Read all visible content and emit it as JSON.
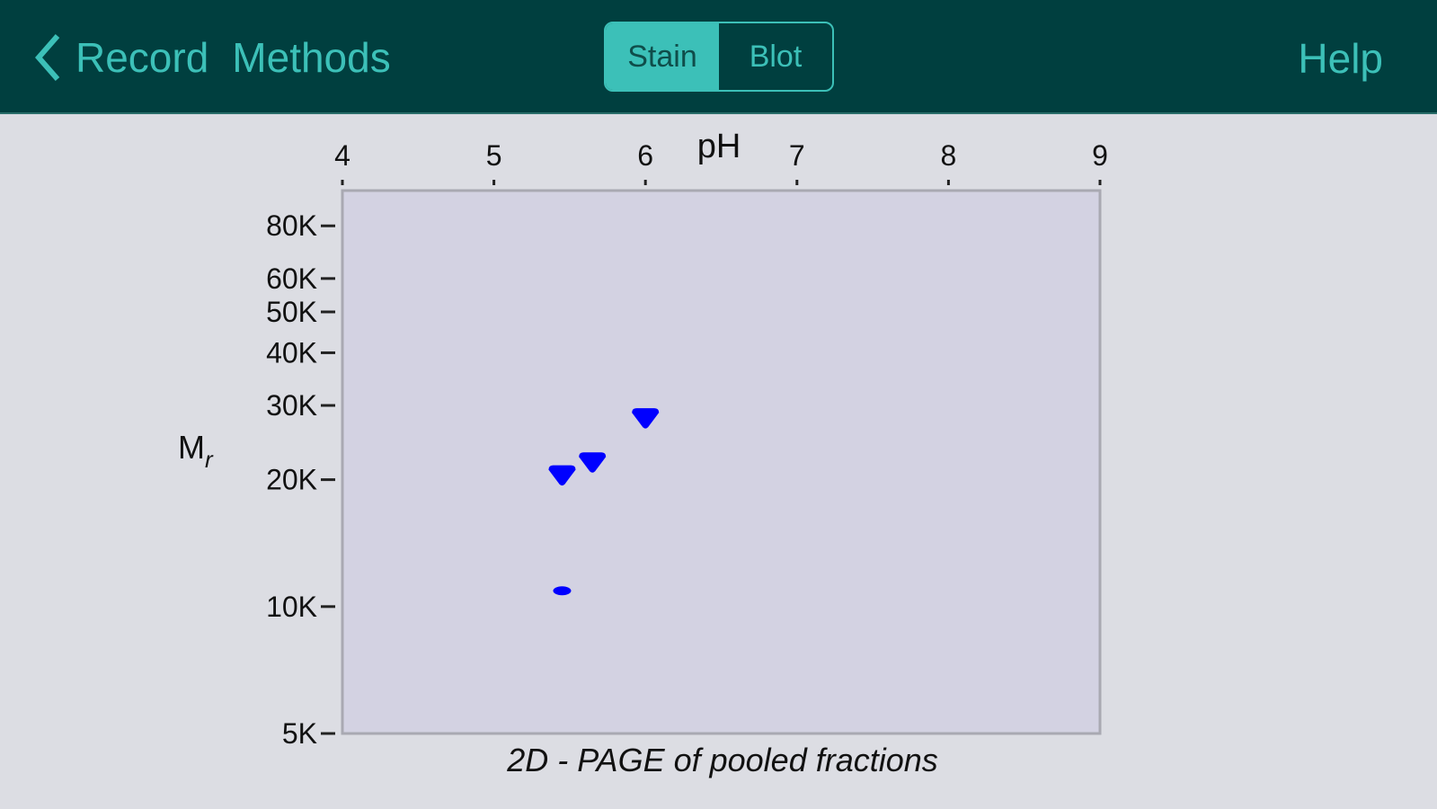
{
  "header": {
    "back_label": "Record",
    "title": "Methods",
    "segments": [
      {
        "label": "Stain",
        "selected": true
      },
      {
        "label": "Blot",
        "selected": false
      }
    ],
    "help_label": "Help",
    "back_icon": "chevron-left-icon"
  },
  "colors": {
    "header_bg": "#003f3f",
    "accent": "#3cc0b8",
    "plot_bg": "#d3d2e2",
    "spot": "#0000ff"
  },
  "chart_data": {
    "type": "scatter",
    "title": "2D - PAGE of pooled fractions",
    "xlabel": "pH",
    "ylabel": "Mr",
    "xlim": [
      4,
      9
    ],
    "ylim": [
      5000,
      97000
    ],
    "yscale": "log",
    "x_ticks": [
      4,
      5,
      6,
      7,
      8,
      9
    ],
    "x_tick_labels": [
      "4",
      "5",
      "6",
      "7",
      "8",
      "9"
    ],
    "y_ticks": [
      80000,
      60000,
      50000,
      40000,
      30000,
      20000,
      10000,
      5000
    ],
    "y_tick_labels": [
      "80K",
      "60K",
      "50K",
      "40K",
      "30K",
      "20K",
      "10K",
      "5K"
    ],
    "grid": false,
    "points": [
      {
        "x": 6.0,
        "y": 28000
      },
      {
        "x": 5.65,
        "y": 22000
      },
      {
        "x": 5.45,
        "y": 20500
      },
      {
        "x": 5.45,
        "y": 10900
      }
    ]
  }
}
